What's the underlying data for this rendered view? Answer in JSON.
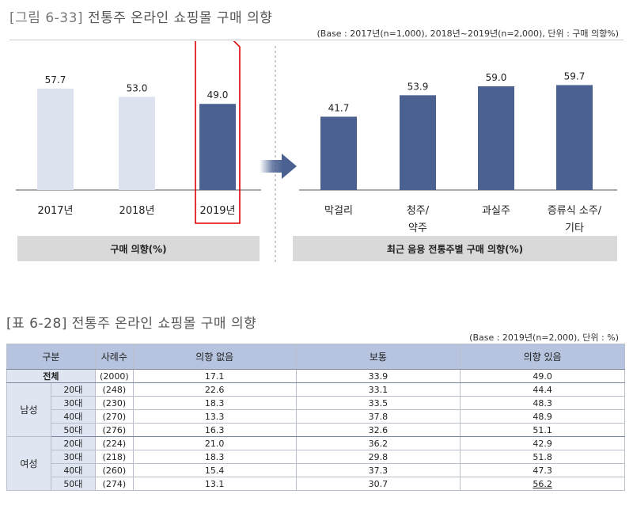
{
  "figure": {
    "label": "[그림 6-33]",
    "title": "전통주 온라인 쇼핑몰 구매 의향",
    "base_note": "(Base : 2017년(n=1,000), 2018년~2019년(n=2,000), 단위 : 구매 의향%)"
  },
  "chart_data": [
    {
      "type": "bar",
      "categories": [
        "2017년",
        "2018년",
        "2019년"
      ],
      "values": [
        57.7,
        53.0,
        49.0
      ],
      "value_labels": [
        "57.7",
        "53.0",
        "49.0"
      ],
      "highlight_index": 2,
      "title": "구매 의향(%)",
      "xlabel": "",
      "ylabel": "",
      "ylim": [
        0,
        70
      ],
      "grid": false,
      "colors": {
        "normal": "#dde3ee",
        "highlight": "#4a6191",
        "highlight_box": "#e00000"
      }
    },
    {
      "type": "bar",
      "categories": [
        "막걸리",
        "청주/\n약주",
        "과실주",
        "증류식 소주/\n기타"
      ],
      "category_lines": [
        [
          "막걸리"
        ],
        [
          "청주/",
          "약주"
        ],
        [
          "과실주"
        ],
        [
          "증류식 소주/",
          "기타"
        ]
      ],
      "values": [
        41.7,
        53.9,
        59.0,
        59.7
      ],
      "value_labels": [
        "41.7",
        "53.9",
        "59.0",
        "59.7"
      ],
      "title": "최근 음용 전통주별 구매 의향(%)",
      "xlabel": "",
      "ylabel": "",
      "ylim": [
        0,
        70
      ],
      "grid": false,
      "colors": {
        "bar": "#4a6191"
      }
    }
  ],
  "table": {
    "label": "[표 6-28]",
    "title": "전통주 온라인 쇼핑몰 구매 의향",
    "base_note": "(Base : 2019년(n=2,000), 단위 : %)",
    "headers": [
      "구분",
      "사례수",
      "의향 없음",
      "보통",
      "의향 있음"
    ],
    "total": {
      "label": "전체",
      "n": "(2000)",
      "no": "17.1",
      "neutral": "33.9",
      "yes": "49.0"
    },
    "groups": [
      {
        "name": "남성",
        "rows": [
          {
            "age": "20대",
            "n": "(248)",
            "no": "22.6",
            "neutral": "33.1",
            "yes": "44.4"
          },
          {
            "age": "30대",
            "n": "(230)",
            "no": "18.3",
            "neutral": "33.5",
            "yes": "48.3"
          },
          {
            "age": "40대",
            "n": "(270)",
            "no": "13.3",
            "neutral": "37.8",
            "yes": "48.9"
          },
          {
            "age": "50대",
            "n": "(276)",
            "no": "16.3",
            "neutral": "32.6",
            "yes": "51.1"
          }
        ]
      },
      {
        "name": "여성",
        "rows": [
          {
            "age": "20대",
            "n": "(224)",
            "no": "21.0",
            "neutral": "36.2",
            "yes": "42.9"
          },
          {
            "age": "30대",
            "n": "(218)",
            "no": "18.3",
            "neutral": "29.8",
            "yes": "51.8"
          },
          {
            "age": "40대",
            "n": "(260)",
            "no": "15.4",
            "neutral": "37.3",
            "yes": "47.3"
          },
          {
            "age": "50대",
            "n": "(274)",
            "no": "13.1",
            "neutral": "30.7",
            "yes": "56.2"
          }
        ]
      }
    ]
  }
}
